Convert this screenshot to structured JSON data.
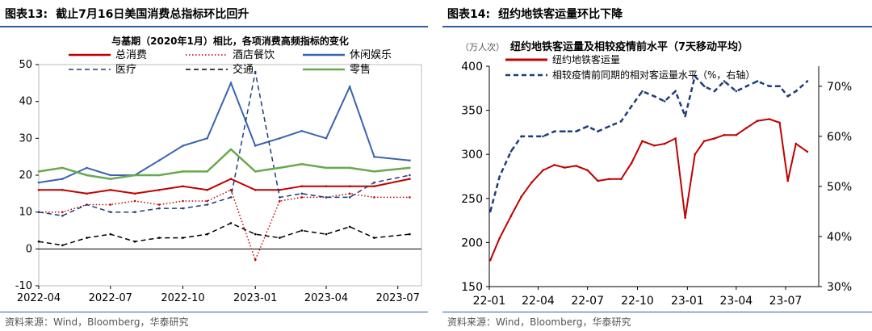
{
  "left_panel": {
    "figure_label": "图表13:",
    "figure_title": "截止7月16日美国消费总指标环比回升",
    "source": "资料来源：Wind，Bloomberg，华泰研究"
  },
  "right_panel": {
    "figure_label": "图表14:",
    "figure_title": "纽约地铁客运量环比下降",
    "source": "资料来源：Wind，Bloomberg，华泰研究"
  },
  "colors": {
    "header_rule": "#2b5fa6",
    "red": "#c00000",
    "blue": "#3a63b0",
    "navy": "#1f3c78",
    "green": "#6aa84f",
    "black": "#000000"
  },
  "chart_data": [
    {
      "type": "line",
      "title": "与基期（2020年1月）相比，各项消费高频指标的变化",
      "ylim": [
        -10,
        50
      ],
      "yticks": [
        -10,
        0,
        10,
        20,
        30,
        40,
        50
      ],
      "xlim": [
        "2022-04-01",
        "2023-07-31"
      ],
      "xticks": [
        "2022-04",
        "2022-07",
        "2022-10",
        "2023-01",
        "2023-04",
        "2023-07"
      ],
      "legend_placement": "top",
      "series": [
        {
          "name": "总消费",
          "color": "#c00000",
          "style": "solid",
          "x": [
            "2022-04-01",
            "2022-05-01",
            "2022-06-01",
            "2022-07-01",
            "2022-08-01",
            "2022-09-01",
            "2022-10-01",
            "2022-11-01",
            "2022-12-01",
            "2023-01-01",
            "2023-02-01",
            "2023-03-01",
            "2023-04-01",
            "2023-05-01",
            "2023-06-01",
            "2023-07-16"
          ],
          "values": [
            16,
            16,
            15,
            16,
            15,
            16,
            17,
            16,
            19,
            16,
            16,
            17,
            17,
            17,
            17,
            19
          ]
        },
        {
          "name": "酒店餐饮",
          "color": "#c00000",
          "style": "dotted",
          "x": [
            "2022-04-01",
            "2022-05-01",
            "2022-06-01",
            "2022-07-01",
            "2022-08-01",
            "2022-09-01",
            "2022-10-01",
            "2022-11-01",
            "2022-12-01",
            "2023-01-01",
            "2023-02-01",
            "2023-03-01",
            "2023-04-01",
            "2023-05-01",
            "2023-06-01",
            "2023-07-16"
          ],
          "values": [
            10,
            10,
            12,
            12,
            13,
            12,
            13,
            13,
            16,
            -3,
            13,
            14,
            14,
            15,
            14,
            14
          ]
        },
        {
          "name": "休闲娱乐",
          "color": "#3a63b0",
          "style": "solid",
          "x": [
            "2022-04-01",
            "2022-05-01",
            "2022-06-01",
            "2022-07-01",
            "2022-08-01",
            "2022-09-01",
            "2022-10-01",
            "2022-11-01",
            "2022-12-01",
            "2023-01-01",
            "2023-02-01",
            "2023-03-01",
            "2023-04-01",
            "2023-05-01",
            "2023-06-01",
            "2023-07-16"
          ],
          "values": [
            18,
            19,
            22,
            20,
            20,
            24,
            28,
            30,
            45,
            28,
            30,
            32,
            30,
            44,
            25,
            24
          ]
        },
        {
          "name": "医疗",
          "color": "#1f3c78",
          "style": "dashed",
          "x": [
            "2022-04-01",
            "2022-05-01",
            "2022-06-01",
            "2022-07-01",
            "2022-08-01",
            "2022-09-01",
            "2022-10-01",
            "2022-11-01",
            "2022-12-01",
            "2023-01-01",
            "2023-02-01",
            "2023-03-01",
            "2023-04-01",
            "2023-05-01",
            "2023-06-01",
            "2023-07-16"
          ],
          "values": [
            10,
            9,
            12,
            10,
            10,
            11,
            11,
            12,
            14,
            48,
            14,
            15,
            14,
            14,
            18,
            20
          ]
        },
        {
          "name": "交通",
          "color": "#000000",
          "style": "dashed",
          "x": [
            "2022-04-01",
            "2022-05-01",
            "2022-06-01",
            "2022-07-01",
            "2022-08-01",
            "2022-09-01",
            "2022-10-01",
            "2022-11-01",
            "2022-12-01",
            "2023-01-01",
            "2023-02-01",
            "2023-03-01",
            "2023-04-01",
            "2023-05-01",
            "2023-06-01",
            "2023-07-16"
          ],
          "values": [
            2,
            1,
            3,
            4,
            2,
            3,
            3,
            4,
            7,
            4,
            3,
            5,
            4,
            6,
            3,
            4
          ]
        },
        {
          "name": "零售",
          "color": "#6aa84f",
          "style": "solid",
          "x": [
            "2022-04-01",
            "2022-05-01",
            "2022-06-01",
            "2022-07-01",
            "2022-08-01",
            "2022-09-01",
            "2022-10-01",
            "2022-11-01",
            "2022-12-01",
            "2023-01-01",
            "2023-02-01",
            "2023-03-01",
            "2023-04-01",
            "2023-05-01",
            "2023-06-01",
            "2023-07-16"
          ],
          "values": [
            21,
            22,
            20,
            19,
            20,
            20,
            21,
            21,
            27,
            21,
            22,
            23,
            22,
            22,
            21,
            22
          ]
        }
      ]
    },
    {
      "type": "line",
      "title": "纽约地铁客运量及相较疫情前水平（7天移动平均）",
      "ylabel": "（万人次）",
      "ylim": [
        150,
        400
      ],
      "yticks": [
        150,
        200,
        250,
        300,
        350,
        400
      ],
      "y2lim": [
        30,
        74
      ],
      "y2ticks": [
        "30%",
        "40%",
        "50%",
        "60%",
        "70%"
      ],
      "y2tick_values": [
        30,
        40,
        50,
        60,
        70
      ],
      "xlim": [
        "2022-01-01",
        "2023-08-31"
      ],
      "xticks": [
        "22-01",
        "22-04",
        "22-07",
        "22-10",
        "23-01",
        "23-04",
        "23-07"
      ],
      "legend_placement": "top-left",
      "series": [
        {
          "name": "纽约地铁客运量",
          "axis": "left",
          "color": "#c00000",
          "style": "solid",
          "x": [
            "2022-01-03",
            "2022-01-20",
            "2022-02-10",
            "2022-03-01",
            "2022-03-20",
            "2022-04-10",
            "2022-05-01",
            "2022-05-20",
            "2022-06-10",
            "2022-07-01",
            "2022-07-20",
            "2022-08-10",
            "2022-09-01",
            "2022-09-20",
            "2022-10-10",
            "2022-11-01",
            "2022-11-20",
            "2022-12-10",
            "2022-12-28",
            "2023-01-15",
            "2023-02-01",
            "2023-02-20",
            "2023-03-10",
            "2023-04-01",
            "2023-04-20",
            "2023-05-10",
            "2023-06-01",
            "2023-06-20",
            "2023-07-05",
            "2023-07-20",
            "2023-08-10"
          ],
          "values": [
            180,
            205,
            230,
            252,
            268,
            282,
            288,
            285,
            287,
            282,
            270,
            272,
            272,
            290,
            315,
            310,
            312,
            318,
            228,
            300,
            315,
            318,
            322,
            322,
            330,
            338,
            340,
            336,
            270,
            312,
            303
          ]
        },
        {
          "name": "相较疫情前同期的相对客运量水平（%，右轴）",
          "axis": "right",
          "color": "#1f3c78",
          "style": "dashed",
          "x": [
            "2022-01-03",
            "2022-01-20",
            "2022-02-10",
            "2022-03-01",
            "2022-03-20",
            "2022-04-10",
            "2022-05-01",
            "2022-05-20",
            "2022-06-10",
            "2022-07-01",
            "2022-07-20",
            "2022-08-10",
            "2022-09-01",
            "2022-09-20",
            "2022-10-10",
            "2022-11-01",
            "2022-11-20",
            "2022-12-10",
            "2022-12-28",
            "2023-01-15",
            "2023-02-01",
            "2023-02-20",
            "2023-03-10",
            "2023-04-01",
            "2023-04-20",
            "2023-05-10",
            "2023-06-01",
            "2023-06-20",
            "2023-07-05",
            "2023-07-20",
            "2023-08-10"
          ],
          "values": [
            45,
            52,
            57,
            60,
            60,
            60,
            61,
            61,
            61,
            62,
            61,
            62,
            63,
            66,
            69,
            68,
            67,
            69,
            64,
            72,
            70,
            69,
            71,
            69,
            70,
            71,
            70,
            70,
            68,
            69,
            71
          ]
        }
      ]
    }
  ]
}
